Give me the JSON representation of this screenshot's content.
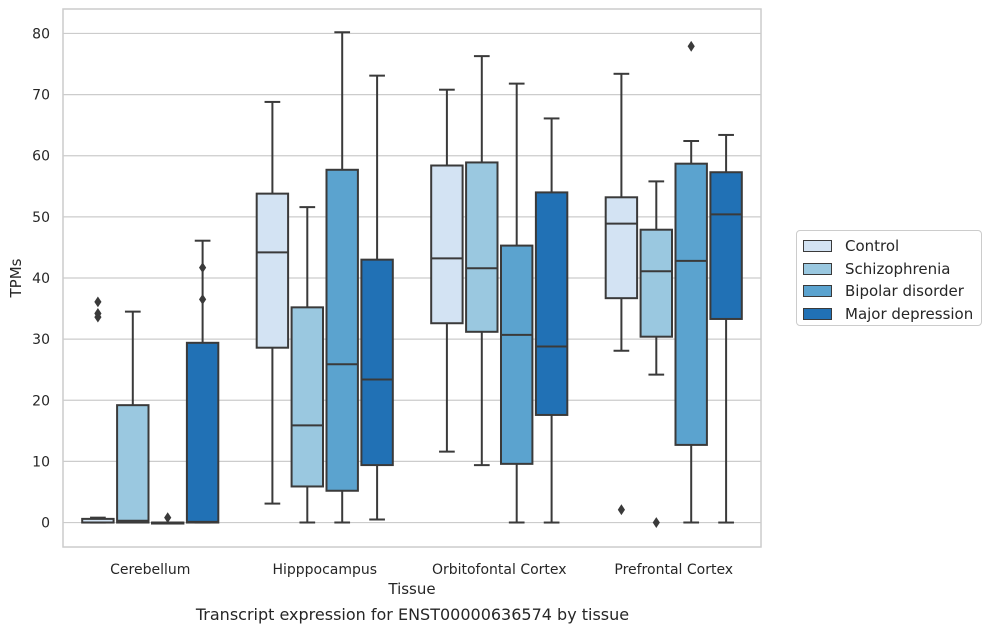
{
  "chart_data": {
    "type": "box",
    "title": "",
    "caption": "Transcript expression for ENST00000636574 by tissue",
    "xlabel": "Tissue",
    "ylabel": "TPMs",
    "ylim": [
      -4,
      84
    ],
    "yticks": [
      0,
      10,
      20,
      30,
      40,
      50,
      60,
      70,
      80
    ],
    "grid": "horizontal",
    "legend_position": "right",
    "categories": [
      "Cerebellum",
      "Hipppocampus",
      "Orbitofontal Cortex",
      "Prefrontal Cortex"
    ],
    "series": [
      {
        "name": "Control",
        "color": "#d3e3f3",
        "boxes": [
          {
            "q1": 0,
            "median": 0,
            "q3": 0.6,
            "whisker_low": 0,
            "whisker_high": 0.8,
            "outliers": [
              33.6,
              34.2,
              36.1
            ]
          },
          {
            "q1": 28.6,
            "median": 44.2,
            "q3": 53.8,
            "whisker_low": 3.1,
            "whisker_high": 68.8,
            "outliers": []
          },
          {
            "q1": 32.6,
            "median": 43.2,
            "q3": 58.4,
            "whisker_low": 11.6,
            "whisker_high": 70.8,
            "outliers": []
          },
          {
            "q1": 36.7,
            "median": 48.9,
            "q3": 53.2,
            "whisker_low": 28.1,
            "whisker_high": 73.4,
            "outliers": [
              2.1
            ]
          }
        ]
      },
      {
        "name": "Schizophrenia",
        "color": "#9ac8e0",
        "boxes": [
          {
            "q1": 0,
            "median": 0.3,
            "q3": 19.2,
            "whisker_low": 0,
            "whisker_high": 34.5,
            "outliers": []
          },
          {
            "q1": 5.9,
            "median": 15.9,
            "q3": 35.2,
            "whisker_low": 0,
            "whisker_high": 51.6,
            "outliers": []
          },
          {
            "q1": 31.2,
            "median": 41.6,
            "q3": 58.9,
            "whisker_low": 9.4,
            "whisker_high": 76.3,
            "outliers": []
          },
          {
            "q1": 30.4,
            "median": 41.1,
            "q3": 47.9,
            "whisker_low": 24.2,
            "whisker_high": 55.8,
            "outliers": [
              0
            ]
          }
        ]
      },
      {
        "name": "Bipolar disorder",
        "color": "#5ba3cf",
        "boxes": [
          {
            "q1": 0,
            "median": 0,
            "q3": 0,
            "whisker_low": 0,
            "whisker_high": 0,
            "outliers": [
              0.8
            ]
          },
          {
            "q1": 5.2,
            "median": 25.9,
            "q3": 57.7,
            "whisker_low": 0,
            "whisker_high": 80.2,
            "outliers": []
          },
          {
            "q1": 9.6,
            "median": 30.7,
            "q3": 45.3,
            "whisker_low": 0,
            "whisker_high": 71.8,
            "outliers": []
          },
          {
            "q1": 12.7,
            "median": 42.8,
            "q3": 58.7,
            "whisker_low": 0,
            "whisker_high": 62.4,
            "outliers": [
              77.9
            ]
          }
        ]
      },
      {
        "name": "Major depression",
        "color": "#2171b5",
        "boxes": [
          {
            "q1": 0,
            "median": 0.1,
            "q3": 29.4,
            "whisker_low": 0,
            "whisker_high": 46.1,
            "outliers": [
              36.5,
              41.7
            ]
          },
          {
            "q1": 9.4,
            "median": 23.4,
            "q3": 43.0,
            "whisker_low": 0.5,
            "whisker_high": 73.1,
            "outliers": []
          },
          {
            "q1": 17.6,
            "median": 28.8,
            "q3": 54.0,
            "whisker_low": 0,
            "whisker_high": 66.1,
            "outliers": []
          },
          {
            "q1": 33.3,
            "median": 50.4,
            "q3": 57.3,
            "whisker_low": 0,
            "whisker_high": 63.4,
            "outliers": []
          }
        ]
      }
    ]
  }
}
